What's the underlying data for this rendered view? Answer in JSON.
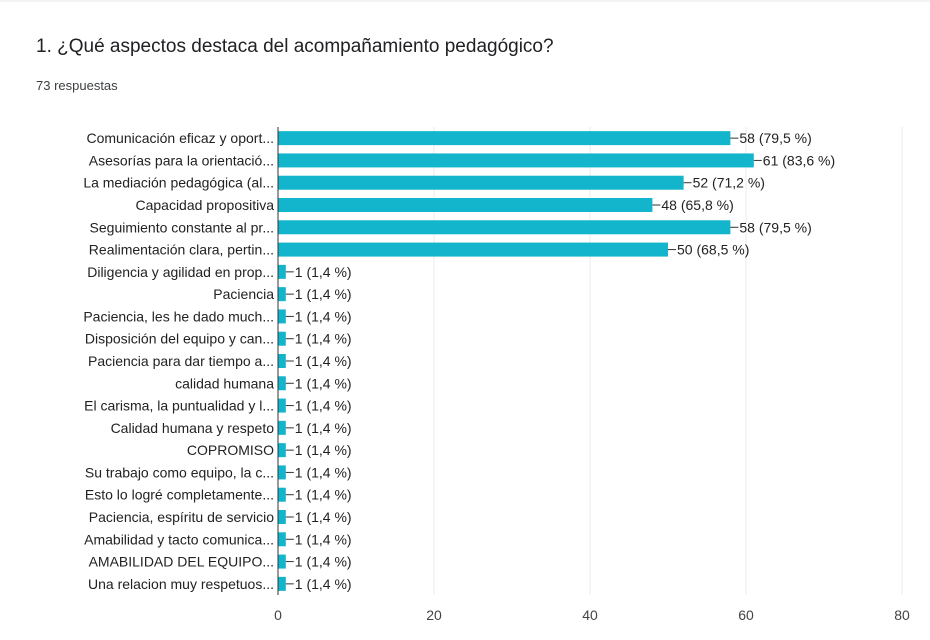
{
  "question": {
    "title": "1. ¿Qué aspectos destaca del acompañamiento pedagógico?",
    "responses": "73 respuestas"
  },
  "colors": {
    "bar": "#12b5cb",
    "grid": "#ebebeb",
    "axis": "#333333",
    "label_text": "#222222",
    "tick_text": "#444444"
  },
  "chart_data": {
    "type": "bar",
    "orientation": "horizontal",
    "categories": [
      "Comunicación eficaz y oport...",
      "Asesorías para la orientació...",
      "La mediación pedagógica (al...",
      "Capacidad propositiva",
      "Seguimiento constante al pr...",
      "Realimentación clara, pertin...",
      "Diligencia y agilidad en prop...",
      "Paciencia",
      "Paciencia, les he dado much...",
      "Disposición del equipo y can...",
      "Paciencia para dar tiempo a...",
      "calidad humana",
      "El carisma, la puntualidad y l...",
      "Calidad humana y respeto",
      "COPROMISO",
      "Su trabajo como equipo, la c...",
      "Esto lo logré completamente...",
      "Paciencia, espíritu de servicio",
      "Amabilidad y tacto comunica...",
      "AMABILIDAD DEL EQUIPO...",
      "Una relacion muy respetuos..."
    ],
    "values": [
      58,
      61,
      52,
      48,
      58,
      50,
      1,
      1,
      1,
      1,
      1,
      1,
      1,
      1,
      1,
      1,
      1,
      1,
      1,
      1,
      1
    ],
    "data_labels": [
      "58 (79,5 %)",
      "61 (83,6 %)",
      "52 (71,2 %)",
      "48 (65,8 %)",
      "58 (79,5 %)",
      "50 (68,5 %)",
      "1 (1,4 %)",
      "1 (1,4 %)",
      "1 (1,4 %)",
      "1 (1,4 %)",
      "1 (1,4 %)",
      "1 (1,4 %)",
      "1 (1,4 %)",
      "1 (1,4 %)",
      "1 (1,4 %)",
      "1 (1,4 %)",
      "1 (1,4 %)",
      "1 (1,4 %)",
      "1 (1,4 %)",
      "1 (1,4 %)",
      "1 (1,4 %)"
    ],
    "xlim": [
      0,
      80
    ],
    "xticks": [
      0,
      20,
      40,
      60,
      80
    ],
    "grid": true,
    "legend": "none"
  }
}
